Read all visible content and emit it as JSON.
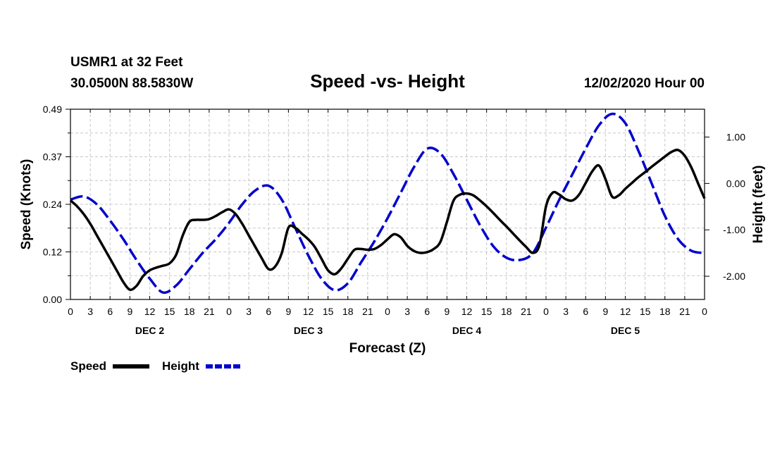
{
  "header": {
    "station": "USMR1 at 32 Feet",
    "coords": "30.0500N 88.5830W",
    "title": "Speed -vs- Height",
    "datetime": "12/02/2020 Hour 00"
  },
  "chart_data": {
    "type": "line",
    "title": "Speed -vs- Height",
    "xlabel": "Forecast (Z)",
    "ylabel": "Speed (Knots)",
    "ylabel_right": "Height (feet)",
    "x_range_hours": [
      0,
      96
    ],
    "x_tick_step_hours": 3,
    "x_tick_labels": [
      "0",
      "3",
      "6",
      "9",
      "12",
      "15",
      "18",
      "21",
      "0",
      "3",
      "6",
      "9",
      "12",
      "15",
      "18",
      "21",
      "0",
      "3",
      "6",
      "9",
      "12",
      "15",
      "18",
      "21",
      "0",
      "3",
      "6",
      "9",
      "12",
      "15",
      "18",
      "21",
      "0"
    ],
    "day_labels": [
      {
        "label": "DEC 2",
        "hour": 12
      },
      {
        "label": "DEC 3",
        "hour": 36
      },
      {
        "label": "DEC 4",
        "hour": 60
      },
      {
        "label": "DEC 5",
        "hour": 84
      }
    ],
    "ylim_left": [
      0,
      0.49
    ],
    "yticks_left": [
      "0.00",
      "0.12",
      "0.24",
      "0.37",
      "0.49"
    ],
    "ylim_right": [
      -2.5,
      1.6
    ],
    "yticks_right": [
      {
        "value": 1.0,
        "label": "1.00"
      },
      {
        "value": 0.0,
        "label": "0.00"
      },
      {
        "value": -1.0,
        "label": "-1.00"
      },
      {
        "value": -2.0,
        "label": "-2.00"
      }
    ],
    "grid": true,
    "legend_position": "bottom-left",
    "series": [
      {
        "name": "Speed",
        "axis": "left",
        "color": "#000000",
        "style": "solid",
        "points": [
          [
            0,
            0.255
          ],
          [
            1,
            0.24
          ],
          [
            2,
            0.22
          ],
          [
            3,
            0.195
          ],
          [
            4,
            0.165
          ],
          [
            5,
            0.135
          ],
          [
            6,
            0.105
          ],
          [
            7,
            0.075
          ],
          [
            8,
            0.045
          ],
          [
            9,
            0.025
          ],
          [
            10,
            0.035
          ],
          [
            11,
            0.06
          ],
          [
            12,
            0.075
          ],
          [
            13,
            0.082
          ],
          [
            14,
            0.087
          ],
          [
            15,
            0.093
          ],
          [
            16,
            0.115
          ],
          [
            17,
            0.165
          ],
          [
            18,
            0.2
          ],
          [
            19,
            0.205
          ],
          [
            20,
            0.205
          ],
          [
            21,
            0.207
          ],
          [
            22,
            0.215
          ],
          [
            23,
            0.225
          ],
          [
            24,
            0.232
          ],
          [
            25,
            0.22
          ],
          [
            26,
            0.195
          ],
          [
            27,
            0.165
          ],
          [
            28,
            0.135
          ],
          [
            29,
            0.105
          ],
          [
            30,
            0.078
          ],
          [
            31,
            0.085
          ],
          [
            32,
            0.12
          ],
          [
            33,
            0.185
          ],
          [
            34,
            0.185
          ],
          [
            35,
            0.17
          ],
          [
            36,
            0.155
          ],
          [
            37,
            0.135
          ],
          [
            38,
            0.105
          ],
          [
            39,
            0.075
          ],
          [
            40,
            0.065
          ],
          [
            41,
            0.08
          ],
          [
            42,
            0.105
          ],
          [
            43,
            0.128
          ],
          [
            44,
            0.13
          ],
          [
            45,
            0.128
          ],
          [
            46,
            0.13
          ],
          [
            47,
            0.14
          ],
          [
            48,
            0.155
          ],
          [
            49,
            0.168
          ],
          [
            50,
            0.16
          ],
          [
            51,
            0.138
          ],
          [
            52,
            0.125
          ],
          [
            53,
            0.12
          ],
          [
            54,
            0.122
          ],
          [
            55,
            0.13
          ],
          [
            56,
            0.148
          ],
          [
            57,
            0.2
          ],
          [
            58,
            0.255
          ],
          [
            59,
            0.27
          ],
          [
            60,
            0.273
          ],
          [
            61,
            0.268
          ],
          [
            62,
            0.255
          ],
          [
            63,
            0.24
          ],
          [
            64,
            0.223
          ],
          [
            65,
            0.205
          ],
          [
            66,
            0.188
          ],
          [
            67,
            0.17
          ],
          [
            68,
            0.152
          ],
          [
            69,
            0.135
          ],
          [
            70,
            0.12
          ],
          [
            71,
            0.14
          ],
          [
            72,
            0.24
          ],
          [
            73,
            0.275
          ],
          [
            74,
            0.27
          ],
          [
            75,
            0.258
          ],
          [
            76,
            0.255
          ],
          [
            77,
            0.27
          ],
          [
            78,
            0.3
          ],
          [
            79,
            0.33
          ],
          [
            80,
            0.345
          ],
          [
            81,
            0.31
          ],
          [
            82,
            0.265
          ],
          [
            83,
            0.268
          ],
          [
            84,
            0.285
          ],
          [
            85,
            0.3
          ],
          [
            86,
            0.315
          ],
          [
            87,
            0.328
          ],
          [
            88,
            0.342
          ],
          [
            89,
            0.355
          ],
          [
            90,
            0.368
          ],
          [
            91,
            0.38
          ],
          [
            92,
            0.385
          ],
          [
            93,
            0.37
          ],
          [
            94,
            0.34
          ],
          [
            95,
            0.3
          ],
          [
            96,
            0.26
          ]
        ]
      },
      {
        "name": "Height",
        "axis": "right",
        "color": "#0000cc",
        "style": "dashed",
        "points": [
          [
            0,
            -0.35
          ],
          [
            2,
            -0.28
          ],
          [
            4,
            -0.45
          ],
          [
            6,
            -0.8
          ],
          [
            8,
            -1.2
          ],
          [
            10,
            -1.65
          ],
          [
            12,
            -2.05
          ],
          [
            14,
            -2.35
          ],
          [
            16,
            -2.2
          ],
          [
            18,
            -1.85
          ],
          [
            20,
            -1.5
          ],
          [
            22,
            -1.2
          ],
          [
            24,
            -0.85
          ],
          [
            26,
            -0.45
          ],
          [
            28,
            -0.15
          ],
          [
            30,
            -0.05
          ],
          [
            32,
            -0.35
          ],
          [
            34,
            -0.95
          ],
          [
            36,
            -1.55
          ],
          [
            38,
            -2.05
          ],
          [
            40,
            -2.3
          ],
          [
            42,
            -2.15
          ],
          [
            44,
            -1.7
          ],
          [
            46,
            -1.25
          ],
          [
            48,
            -0.75
          ],
          [
            50,
            -0.2
          ],
          [
            52,
            0.35
          ],
          [
            54,
            0.75
          ],
          [
            56,
            0.65
          ],
          [
            58,
            0.2
          ],
          [
            60,
            -0.35
          ],
          [
            62,
            -0.9
          ],
          [
            64,
            -1.35
          ],
          [
            66,
            -1.6
          ],
          [
            68,
            -1.65
          ],
          [
            70,
            -1.5
          ],
          [
            72,
            -0.95
          ],
          [
            74,
            -0.35
          ],
          [
            76,
            0.2
          ],
          [
            78,
            0.75
          ],
          [
            80,
            1.25
          ],
          [
            82,
            1.5
          ],
          [
            84,
            1.3
          ],
          [
            86,
            0.7
          ],
          [
            88,
            0.0
          ],
          [
            90,
            -0.7
          ],
          [
            92,
            -1.2
          ],
          [
            94,
            -1.45
          ],
          [
            96,
            -1.5
          ]
        ]
      }
    ]
  }
}
